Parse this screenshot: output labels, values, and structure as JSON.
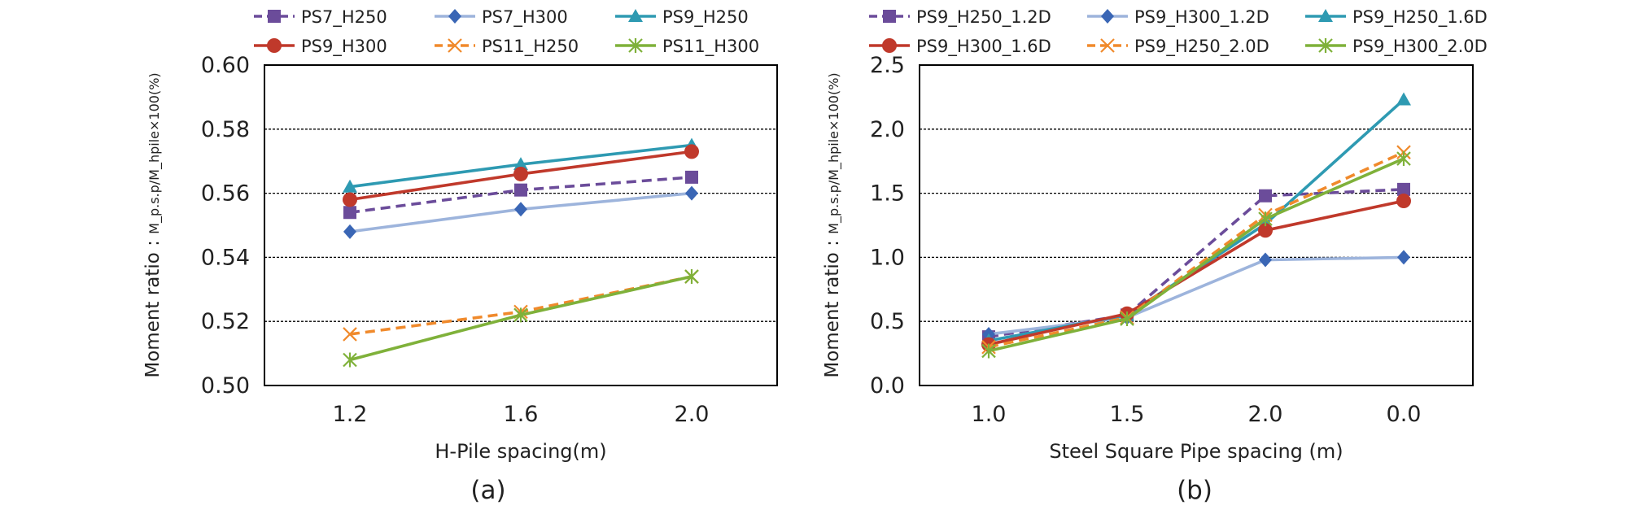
{
  "chart_data": [
    {
      "type": "line",
      "caption": "(a)",
      "xlabel": "H-Pile spacing(m)",
      "ylabel_main": "Moment ratio : ",
      "ylabel_sub": "M_p.s.p/M_hpile×100(%)",
      "categories": [
        "1.2",
        "1.6",
        "2.0"
      ],
      "ylim": [
        0.5,
        0.6
      ],
      "yticks": [
        "0.60",
        "0.58",
        "0.56",
        "0.54",
        "0.52",
        "0.50"
      ],
      "ytick_values": [
        0.6,
        0.58,
        0.56,
        0.54,
        0.52,
        0.5
      ],
      "series": [
        {
          "name": "PS7_H250",
          "values": [
            0.554,
            0.561,
            0.565
          ],
          "color": "#6b4c9a",
          "dash": true,
          "marker": "square"
        },
        {
          "name": "PS7_H300",
          "values": [
            0.548,
            0.555,
            0.56
          ],
          "color": "#9db4dc",
          "dash": false,
          "marker": "diamond",
          "marker_color": "#3a66b5"
        },
        {
          "name": "PS9_H250",
          "values": [
            0.562,
            0.569,
            0.575
          ],
          "color": "#2e9ab2",
          "dash": false,
          "marker": "triangle"
        },
        {
          "name": "PS9_H300",
          "values": [
            0.558,
            0.566,
            0.573
          ],
          "color": "#c0392b",
          "dash": false,
          "marker": "circle"
        },
        {
          "name": "PS11_H250",
          "values": [
            0.516,
            0.523,
            0.534
          ],
          "color": "#f08a2c",
          "dash": true,
          "marker": "x"
        },
        {
          "name": "PS11_H300",
          "values": [
            0.508,
            0.522,
            0.534
          ],
          "color": "#7fb13a",
          "dash": false,
          "marker": "star"
        }
      ]
    },
    {
      "type": "line",
      "caption": "(b)",
      "xlabel": "Steel Square Pipe spacing (m)",
      "ylabel_main": "Moment ratio : ",
      "ylabel_sub": "M_p.s.p/M_hpile×100(%)",
      "categories": [
        "1.0",
        "1.5",
        "2.0",
        "0.0"
      ],
      "ylim": [
        0.0,
        2.5
      ],
      "yticks": [
        "2.5",
        "2.0",
        "1.5",
        "1.0",
        "0.5",
        "0.0"
      ],
      "ytick_values": [
        2.5,
        2.0,
        1.5,
        1.0,
        0.5,
        0.0
      ],
      "series": [
        {
          "name": "PS9_H250_1.2D",
          "values": [
            0.38,
            0.55,
            1.48,
            1.53
          ],
          "color": "#6b4c9a",
          "dash": true,
          "marker": "square"
        },
        {
          "name": "PS9_H300_1.2D",
          "values": [
            0.4,
            0.53,
            0.98,
            1.0
          ],
          "color": "#9db4dc",
          "dash": false,
          "marker": "diamond",
          "marker_color": "#3a66b5"
        },
        {
          "name": "PS9_H250_1.6D",
          "values": [
            0.35,
            0.55,
            1.26,
            2.23
          ],
          "color": "#2e9ab2",
          "dash": false,
          "marker": "triangle"
        },
        {
          "name": "PS9_H300_1.6D",
          "values": [
            0.32,
            0.56,
            1.21,
            1.44
          ],
          "color": "#c0392b",
          "dash": false,
          "marker": "circle"
        },
        {
          "name": "PS9_H250_2.0D",
          "values": [
            0.3,
            0.53,
            1.33,
            1.82
          ],
          "color": "#f08a2c",
          "dash": true,
          "marker": "x"
        },
        {
          "name": "PS9_H300_2.0D",
          "values": [
            0.27,
            0.52,
            1.3,
            1.77
          ],
          "color": "#7fb13a",
          "dash": false,
          "marker": "star"
        }
      ]
    }
  ]
}
